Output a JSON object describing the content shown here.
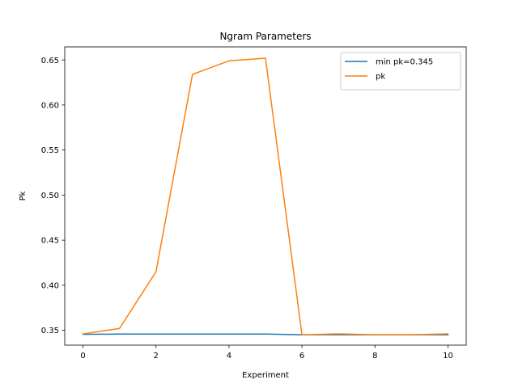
{
  "chart_data": {
    "type": "line",
    "title": "Ngram Parameters",
    "xlabel": "Experiment",
    "ylabel": "Pk",
    "x": [
      0,
      1,
      2,
      3,
      4,
      5,
      6,
      7,
      8,
      9,
      10
    ],
    "xlim": [
      -0.5,
      10.5
    ],
    "ylim": [
      0.3335,
      0.6645
    ],
    "xticks": [
      0,
      2,
      4,
      6,
      8,
      10
    ],
    "xtick_labels": [
      "0",
      "2",
      "4",
      "6",
      "8",
      "10"
    ],
    "yticks": [
      0.35,
      0.4,
      0.45,
      0.5,
      0.55,
      0.6,
      0.65
    ],
    "ytick_labels": [
      "0.35",
      "0.40",
      "0.45",
      "0.50",
      "0.55",
      "0.60",
      "0.65"
    ],
    "grid": false,
    "legend_position": "top-right",
    "series": [
      {
        "name": "min pk=0.345",
        "color": "#1f77b4",
        "values": [
          0.3455,
          0.3458,
          0.3458,
          0.3458,
          0.3458,
          0.3458,
          0.345,
          0.345,
          0.345,
          0.345,
          0.345
        ]
      },
      {
        "name": "pk",
        "color": "#ff7f0e",
        "values": [
          0.346,
          0.352,
          0.415,
          0.634,
          0.649,
          0.652,
          0.345,
          0.346,
          0.345,
          0.345,
          0.346
        ]
      }
    ]
  }
}
